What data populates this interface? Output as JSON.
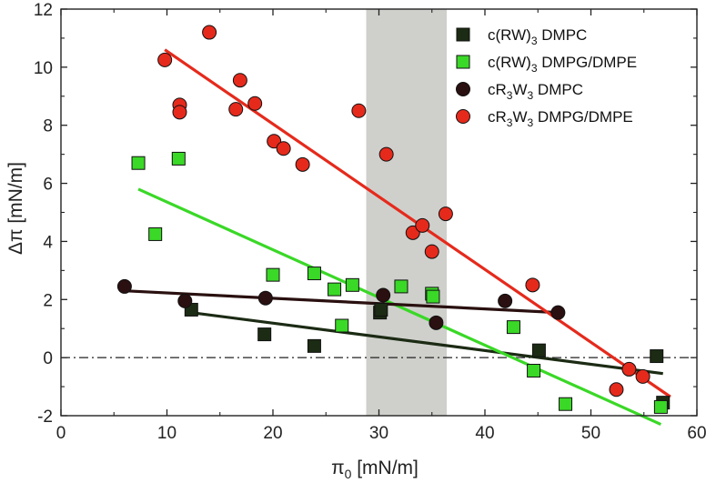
{
  "chart_data": {
    "type": "scatter",
    "title": "",
    "xlabel": "π0 [mN/m]",
    "xlabel_symbol": "π",
    "xlabel_sub": "0",
    "xlabel_unit": " [mN/m]",
    "ylabel": "Δπ [mN/m]",
    "xlim": [
      0,
      60
    ],
    "ylim": [
      -2,
      12
    ],
    "x_ticks": [
      0,
      10,
      20,
      30,
      40,
      50,
      60
    ],
    "y_ticks": [
      -2,
      0,
      2,
      4,
      6,
      8,
      10,
      12
    ],
    "shaded_region": {
      "x_start": 28.8,
      "x_end": 36.4,
      "color": "#cfd0cc"
    },
    "reference_line": {
      "y": 0,
      "style": "dash-dot"
    },
    "legend_position": "top-right",
    "series": [
      {
        "name": "c(RW)3 DMPC",
        "label_main": "c(RW)",
        "label_sub": "3",
        "label_rest": " DMPC",
        "marker": "square",
        "color": "#1c2b14",
        "points": [
          [
            12.3,
            1.65
          ],
          [
            19.2,
            0.8
          ],
          [
            23.9,
            0.4
          ],
          [
            30.1,
            1.55
          ],
          [
            30.2,
            1.65
          ],
          [
            45.1,
            0.25
          ],
          [
            56.2,
            0.05
          ],
          [
            56.8,
            -1.55
          ]
        ],
        "fit": [
          [
            12.3,
            1.55
          ],
          [
            56.8,
            -0.55
          ]
        ]
      },
      {
        "name": "c(RW)3 DMPG/DMPE",
        "label_main": "c(RW)",
        "label_sub": "3",
        "label_rest": " DMPG/DMPE",
        "marker": "square",
        "color": "#3ad827",
        "points": [
          [
            7.3,
            6.7
          ],
          [
            8.9,
            4.25
          ],
          [
            11.1,
            6.85
          ],
          [
            20.0,
            2.85
          ],
          [
            23.9,
            2.9
          ],
          [
            25.8,
            2.35
          ],
          [
            26.5,
            1.1
          ],
          [
            27.5,
            2.5
          ],
          [
            32.1,
            2.45
          ],
          [
            35.0,
            2.2
          ],
          [
            35.1,
            2.1
          ],
          [
            42.7,
            1.05
          ],
          [
            44.6,
            -0.45
          ],
          [
            47.6,
            -1.6
          ],
          [
            56.6,
            -1.7
          ]
        ],
        "fit": [
          [
            7.3,
            5.8
          ],
          [
            56.6,
            -2.3
          ]
        ]
      },
      {
        "name": "cR3W3 DMPC",
        "label_main": "cR",
        "label_sub": "3",
        "label_mid": "W",
        "label_sub2": "3",
        "label_rest": " DMPC",
        "marker": "circle",
        "color": "#2a1010",
        "points": [
          [
            6.0,
            2.45
          ],
          [
            11.7,
            1.95
          ],
          [
            19.3,
            2.05
          ],
          [
            30.4,
            2.15
          ],
          [
            35.4,
            1.2
          ],
          [
            41.9,
            1.95
          ],
          [
            46.9,
            1.55
          ]
        ],
        "fit": [
          [
            6.0,
            2.3
          ],
          [
            46.9,
            1.55
          ]
        ]
      },
      {
        "name": "cR3W3 DMPG/DMPE",
        "label_main": "cR",
        "label_sub": "3",
        "label_mid": "W",
        "label_sub2": "3",
        "label_rest": " DMPG/DMPE",
        "marker": "circle",
        "color": "#e52a1c",
        "points": [
          [
            9.8,
            10.25
          ],
          [
            11.2,
            8.7
          ],
          [
            11.2,
            8.45
          ],
          [
            14.0,
            11.2
          ],
          [
            16.5,
            8.55
          ],
          [
            16.9,
            9.55
          ],
          [
            18.3,
            8.75
          ],
          [
            20.1,
            7.45
          ],
          [
            21.0,
            7.2
          ],
          [
            22.8,
            6.65
          ],
          [
            28.1,
            8.5
          ],
          [
            30.7,
            7.0
          ],
          [
            33.2,
            4.3
          ],
          [
            34.1,
            4.55
          ],
          [
            35.0,
            3.65
          ],
          [
            36.3,
            4.95
          ],
          [
            44.5,
            2.5
          ],
          [
            52.4,
            -1.1
          ],
          [
            53.6,
            -0.4
          ],
          [
            54.9,
            -0.65
          ]
        ],
        "fit": [
          [
            9.8,
            10.6
          ],
          [
            57.5,
            -1.35
          ]
        ]
      }
    ]
  }
}
